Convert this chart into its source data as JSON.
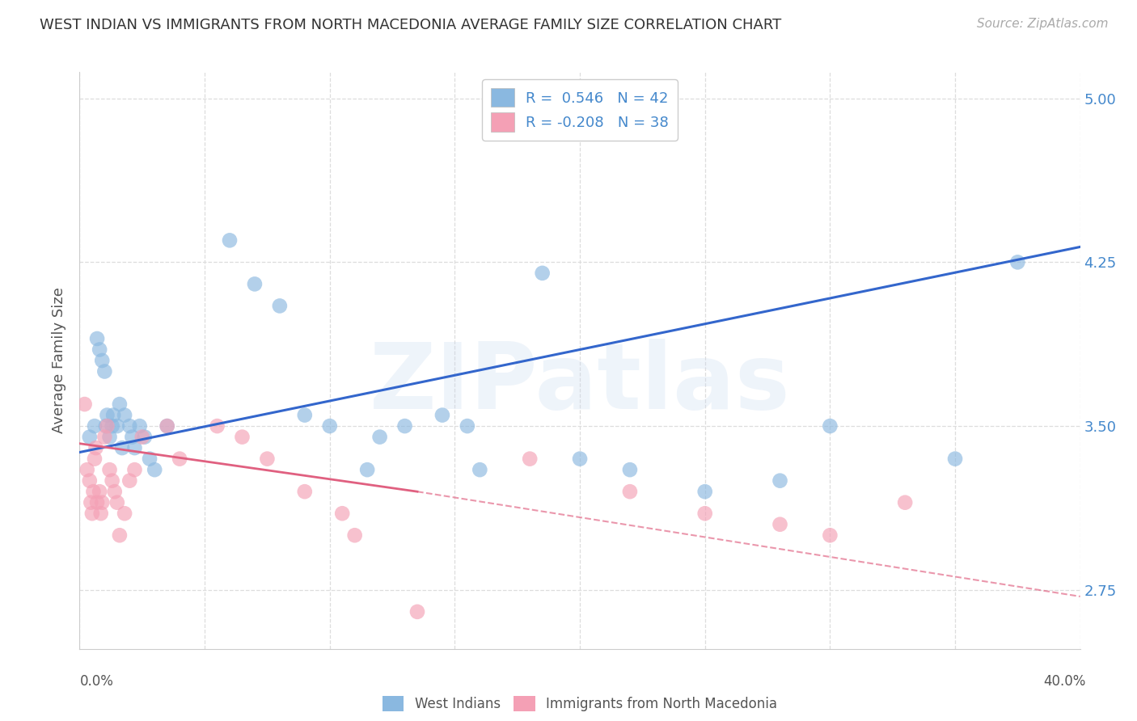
{
  "title": "WEST INDIAN VS IMMIGRANTS FROM NORTH MACEDONIA AVERAGE FAMILY SIZE CORRELATION CHART",
  "source": "Source: ZipAtlas.com",
  "ylabel": "Average Family Size",
  "watermark": "ZIPatlas",
  "ytick_values": [
    2.75,
    3.5,
    4.25,
    5.0
  ],
  "xlim": [
    0.0,
    40.0
  ],
  "ylim": [
    2.48,
    5.12
  ],
  "legend_label1": "West Indians",
  "legend_label2": "Immigrants from North Macedonia",
  "r1": 0.546,
  "n1": 42,
  "r2": -0.208,
  "n2": 38,
  "blue_color": "#8ab8e0",
  "pink_color": "#f4a0b5",
  "blue_line_color": "#3366cc",
  "pink_line_color": "#e06080",
  "blue_scatter_x": [
    0.4,
    0.6,
    0.7,
    0.8,
    0.9,
    1.0,
    1.05,
    1.1,
    1.2,
    1.3,
    1.35,
    1.5,
    1.6,
    1.7,
    1.8,
    2.0,
    2.1,
    2.2,
    2.4,
    2.6,
    2.8,
    3.0,
    3.5,
    6.0,
    7.0,
    8.0,
    9.0,
    10.0,
    11.5,
    12.0,
    13.0,
    14.5,
    15.5,
    16.0,
    18.5,
    20.0,
    22.0,
    25.0,
    28.0,
    30.0,
    35.0,
    37.5
  ],
  "blue_scatter_y": [
    3.45,
    3.5,
    3.9,
    3.85,
    3.8,
    3.75,
    3.5,
    3.55,
    3.45,
    3.5,
    3.55,
    3.5,
    3.6,
    3.4,
    3.55,
    3.5,
    3.45,
    3.4,
    3.5,
    3.45,
    3.35,
    3.3,
    3.5,
    4.35,
    4.15,
    4.05,
    3.55,
    3.5,
    3.3,
    3.45,
    3.5,
    3.55,
    3.5,
    3.3,
    4.2,
    3.35,
    3.3,
    3.2,
    3.25,
    3.5,
    3.35,
    4.25
  ],
  "pink_scatter_x": [
    0.2,
    0.3,
    0.4,
    0.45,
    0.5,
    0.55,
    0.6,
    0.65,
    0.7,
    0.8,
    0.85,
    0.9,
    1.0,
    1.1,
    1.2,
    1.3,
    1.4,
    1.5,
    1.6,
    1.8,
    2.0,
    2.2,
    2.5,
    3.5,
    4.0,
    5.5,
    6.5,
    7.5,
    9.0,
    10.5,
    11.0,
    13.5,
    18.0,
    22.0,
    25.0,
    28.0,
    30.0,
    33.0
  ],
  "pink_scatter_y": [
    3.6,
    3.3,
    3.25,
    3.15,
    3.1,
    3.2,
    3.35,
    3.4,
    3.15,
    3.2,
    3.1,
    3.15,
    3.45,
    3.5,
    3.3,
    3.25,
    3.2,
    3.15,
    3.0,
    3.1,
    3.25,
    3.3,
    3.45,
    3.5,
    3.35,
    3.5,
    3.45,
    3.35,
    3.2,
    3.1,
    3.0,
    2.65,
    3.35,
    3.2,
    3.1,
    3.05,
    3.0,
    3.15
  ],
  "background_color": "#ffffff",
  "grid_color": "#dddddd"
}
